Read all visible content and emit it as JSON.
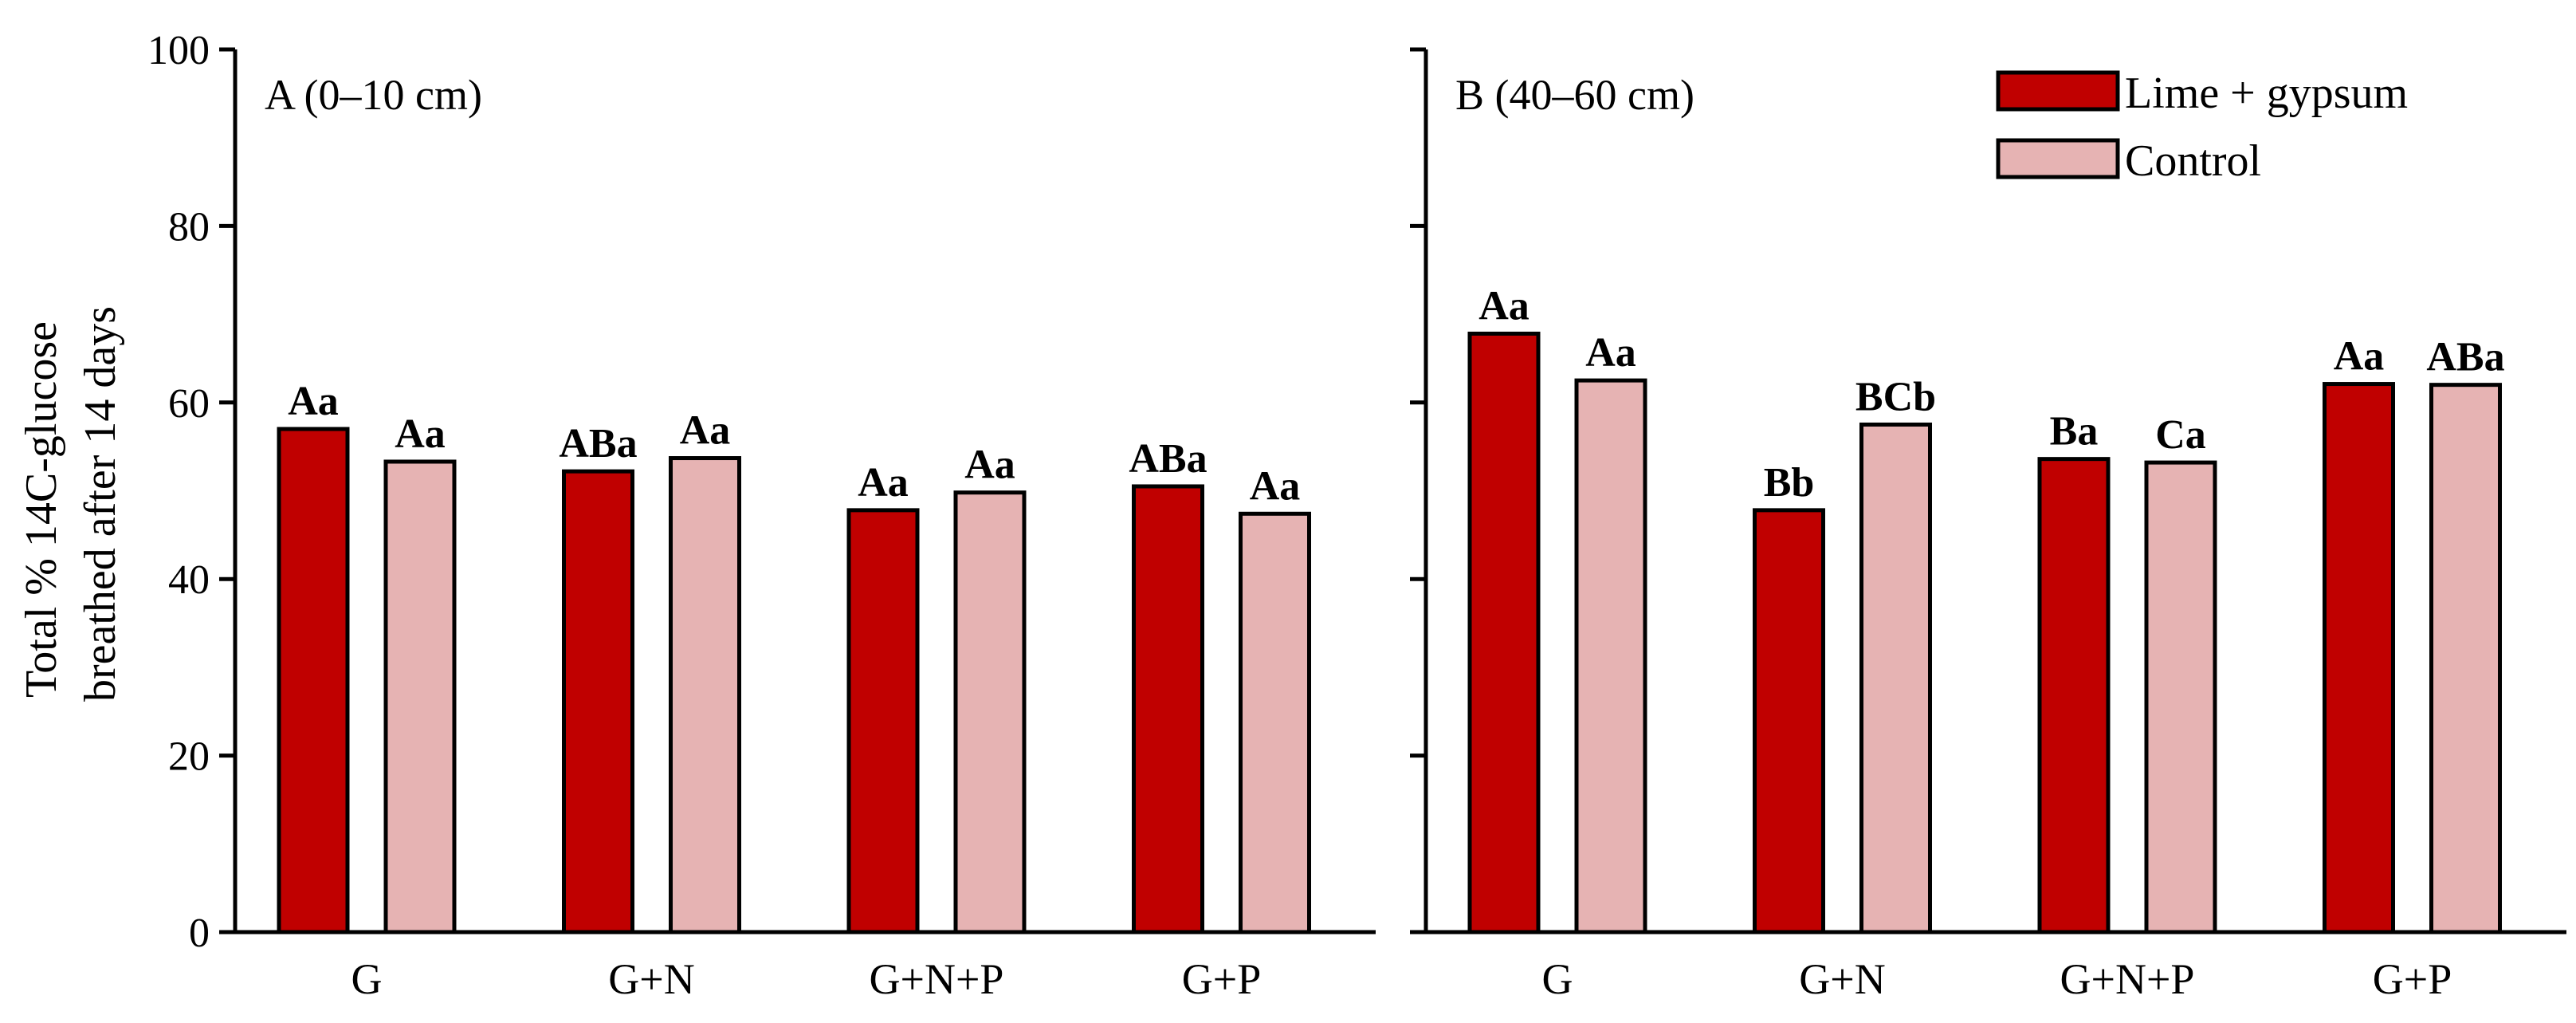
{
  "chart_data": [
    {
      "type": "bar",
      "title": "A (0–10 cm)",
      "ylabel": "Total % 14C-glucose breathed after 14 days",
      "ylim": [
        0,
        100
      ],
      "yticks": [
        0,
        20,
        40,
        60,
        80,
        100
      ],
      "categories": [
        "G",
        "G+N",
        "G+N+P",
        "G+P"
      ],
      "series": [
        {
          "name": "Lime + gypsum",
          "color": "#c00000",
          "values": [
            57,
            52.2,
            47.8,
            50.5
          ],
          "labels": [
            "Aa",
            "ABa",
            "Aa",
            "ABa"
          ]
        },
        {
          "name": "Control",
          "color": "#e6b3b3",
          "values": [
            53.3,
            53.7,
            49.8,
            47.4
          ],
          "labels": [
            "Aa",
            "Aa",
            "Aa",
            "Aa"
          ]
        }
      ]
    },
    {
      "type": "bar",
      "title": "B (40–60 cm)",
      "ylabel": "",
      "ylim": [
        0,
        100
      ],
      "yticks": [
        0,
        20,
        40,
        60,
        80,
        100
      ],
      "categories": [
        "G",
        "G+N",
        "G+N+P",
        "G+P"
      ],
      "series": [
        {
          "name": "Lime + gypsum",
          "color": "#c00000",
          "values": [
            67.8,
            47.8,
            53.6,
            62.1
          ],
          "labels": [
            "Aa",
            "Bb",
            "Ba",
            "Aa"
          ]
        },
        {
          "name": "Control",
          "color": "#e6b3b3",
          "values": [
            62.5,
            57.5,
            53.2,
            62
          ],
          "labels": [
            "Aa",
            "BCb",
            "Ca",
            "ABa"
          ]
        }
      ]
    }
  ],
  "legend": {
    "items": [
      {
        "label": "Lime + gypsum",
        "color": "#c00000"
      },
      {
        "label": "Control",
        "color": "#e6b3b3"
      }
    ]
  }
}
